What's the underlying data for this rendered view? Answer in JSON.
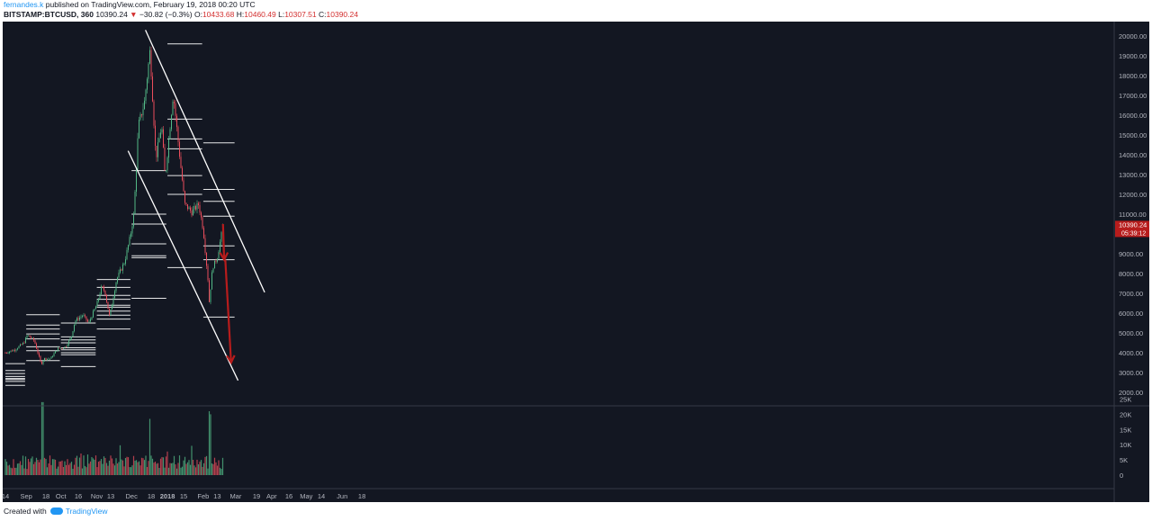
{
  "header": {
    "author": "fernandes.k",
    "published_text": "published on TradingView.com, February 19, 2018 00:20 UTC",
    "symbol": "BITSTAMP:BTCUSD, 360",
    "last": "10390.24",
    "arrow": "▼",
    "change": "−30.82 (−0.3%)",
    "o_label": "O:",
    "o_value": "10433.68",
    "h_label": "H:",
    "h_value": "10460.49",
    "l_label": "L:",
    "l_value": "10307.51",
    "c_label": "C:",
    "c_value": "10390.24"
  },
  "footer": {
    "created_with": "Created with",
    "brand": "TradingView"
  },
  "colors": {
    "bg": "#131722",
    "up": "#53b987",
    "down": "#eb4d5c",
    "line": "#ffffff",
    "arrow": "#b71c1c",
    "price_tag": "#b71c1c"
  },
  "chart_data": {
    "type": "candlestick",
    "symbol": "BITSTAMP:BTCUSD",
    "interval": "360",
    "price_axis": {
      "ticks": [
        "20000.00",
        "19000.00",
        "18000.00",
        "17000.00",
        "16000.00",
        "15000.00",
        "14000.00",
        "13000.00",
        "12000.00",
        "11000.00",
        "10000.00",
        "9000.00",
        "8000.00",
        "7000.00",
        "6000.00",
        "5000.00",
        "4000.00",
        "3000.00",
        "2000.00"
      ],
      "ylim": [
        1600,
        20600
      ]
    },
    "volume_axis": {
      "ticks": [
        "25K",
        "20K",
        "15K",
        "10K",
        "5K",
        "0"
      ],
      "ylim": [
        0,
        27000
      ]
    },
    "last_price_tag": {
      "price": "10390.24",
      "countdown": "05:39:12"
    },
    "time_axis": {
      "labels": [
        "14",
        "Sep",
        "18",
        "Oct",
        "16",
        "Nov",
        "13",
        "Dec",
        "18",
        "2018",
        "15",
        "Feb",
        "13",
        "Mar",
        "19",
        "Apr",
        "16",
        "May",
        "14",
        "Jun",
        "18"
      ],
      "dates": [
        "2017-08-14",
        "2017-09-01",
        "2017-09-18",
        "2017-10-01",
        "2017-10-16",
        "2017-11-01",
        "2017-11-13",
        "2017-12-01",
        "2017-12-18",
        "2018-01-01",
        "2018-01-15",
        "2018-02-01",
        "2018-02-13",
        "2018-03-01",
        "2018-03-19",
        "2018-04-01",
        "2018-04-16",
        "2018-05-01",
        "2018-05-14",
        "2018-06-01",
        "2018-06-18"
      ]
    },
    "price_path": [
      [
        "2017-08-14",
        4000
      ],
      [
        "2017-08-22",
        4150
      ],
      [
        "2017-08-30",
        4500
      ],
      [
        "2017-09-02",
        4900
      ],
      [
        "2017-09-08",
        4600
      ],
      [
        "2017-09-14",
        3400
      ],
      [
        "2017-09-16",
        3700
      ],
      [
        "2017-09-22",
        3700
      ],
      [
        "2017-09-28",
        4200
      ],
      [
        "2017-10-05",
        4300
      ],
      [
        "2017-10-10",
        4800
      ],
      [
        "2017-10-13",
        5600
      ],
      [
        "2017-10-20",
        5900
      ],
      [
        "2017-10-25",
        5500
      ],
      [
        "2017-11-01",
        6450
      ],
      [
        "2017-11-05",
        7300
      ],
      [
        "2017-11-08",
        7100
      ],
      [
        "2017-11-12",
        5800
      ],
      [
        "2017-11-18",
        7700
      ],
      [
        "2017-11-25",
        8600
      ],
      [
        "2017-11-30",
        9900
      ],
      [
        "2017-12-03",
        11000
      ],
      [
        "2017-12-07",
        15500
      ],
      [
        "2017-12-12",
        16600
      ],
      [
        "2017-12-17",
        19300
      ],
      [
        "2017-12-22",
        13800
      ],
      [
        "2017-12-27",
        15500
      ],
      [
        "2017-12-30",
        12800
      ],
      [
        "2018-01-02",
        14700
      ],
      [
        "2018-01-06",
        17100
      ],
      [
        "2018-01-12",
        13700
      ],
      [
        "2018-01-16",
        11500
      ],
      [
        "2018-01-22",
        11100
      ],
      [
        "2018-01-28",
        11500
      ],
      [
        "2018-02-01",
        10200
      ],
      [
        "2018-02-05",
        7700
      ],
      [
        "2018-02-06",
        6500
      ],
      [
        "2018-02-09",
        8300
      ],
      [
        "2018-02-13",
        8800
      ],
      [
        "2018-02-18",
        10390
      ]
    ],
    "volume_bars_note": "volume histogram, taller bars mid-Sep, mid-Dec and early Feb",
    "volume_spikes": [
      [
        "2017-09-15",
        24000
      ],
      [
        "2017-12-17",
        18500
      ],
      [
        "2018-02-06",
        21000
      ],
      [
        "2018-02-07",
        20000
      ]
    ],
    "horizontal_levels": [
      {
        "from": "2017-08-14",
        "to": "2017-08-31",
        "prices": [
          3450,
          3100,
          2950,
          2800,
          2700,
          2650,
          2550,
          2350
        ]
      },
      {
        "from": "2017-09-01",
        "to": "2017-09-30",
        "prices": [
          5920,
          5400,
          5200,
          4950,
          4700,
          4300,
          4100,
          3600
        ]
      },
      {
        "from": "2017-10-01",
        "to": "2017-10-31",
        "prices": [
          5500,
          4800,
          4650,
          4500,
          4250,
          4150,
          4000,
          3900,
          3300
        ]
      },
      {
        "from": "2017-11-01",
        "to": "2017-11-30",
        "prices": [
          7700,
          7300,
          6900,
          6700,
          6400,
          6300,
          6100,
          5900,
          5700,
          5200
        ]
      },
      {
        "from": "2017-12-01",
        "to": "2017-12-31",
        "prices": [
          13200,
          11000,
          10500,
          9500,
          8900,
          8800,
          6750
        ]
      },
      {
        "from": "2018-01-01",
        "to": "2018-01-31",
        "prices": [
          19600,
          15800,
          14800,
          14300,
          12950,
          12000,
          8300
        ]
      },
      {
        "from": "2018-02-01",
        "to": "2018-02-28",
        "prices": [
          14600,
          12250,
          11650,
          10900,
          9400,
          8700,
          5800
        ]
      }
    ],
    "trend_lines": [
      {
        "from": [
          "2017-12-13",
          20300
        ],
        "to": [
          "2018-03-26",
          7050
        ]
      },
      {
        "from": [
          "2017-11-28",
          14200
        ],
        "to": [
          "2018-03-03",
          2600
        ]
      }
    ],
    "arrows": [
      {
        "from": [
          "2018-02-18",
          10500
        ],
        "to": [
          "2018-02-19",
          8700
        ]
      },
      {
        "from": [
          "2018-02-20",
          8700
        ],
        "to": [
          "2018-02-25",
          3500
        ]
      }
    ]
  }
}
